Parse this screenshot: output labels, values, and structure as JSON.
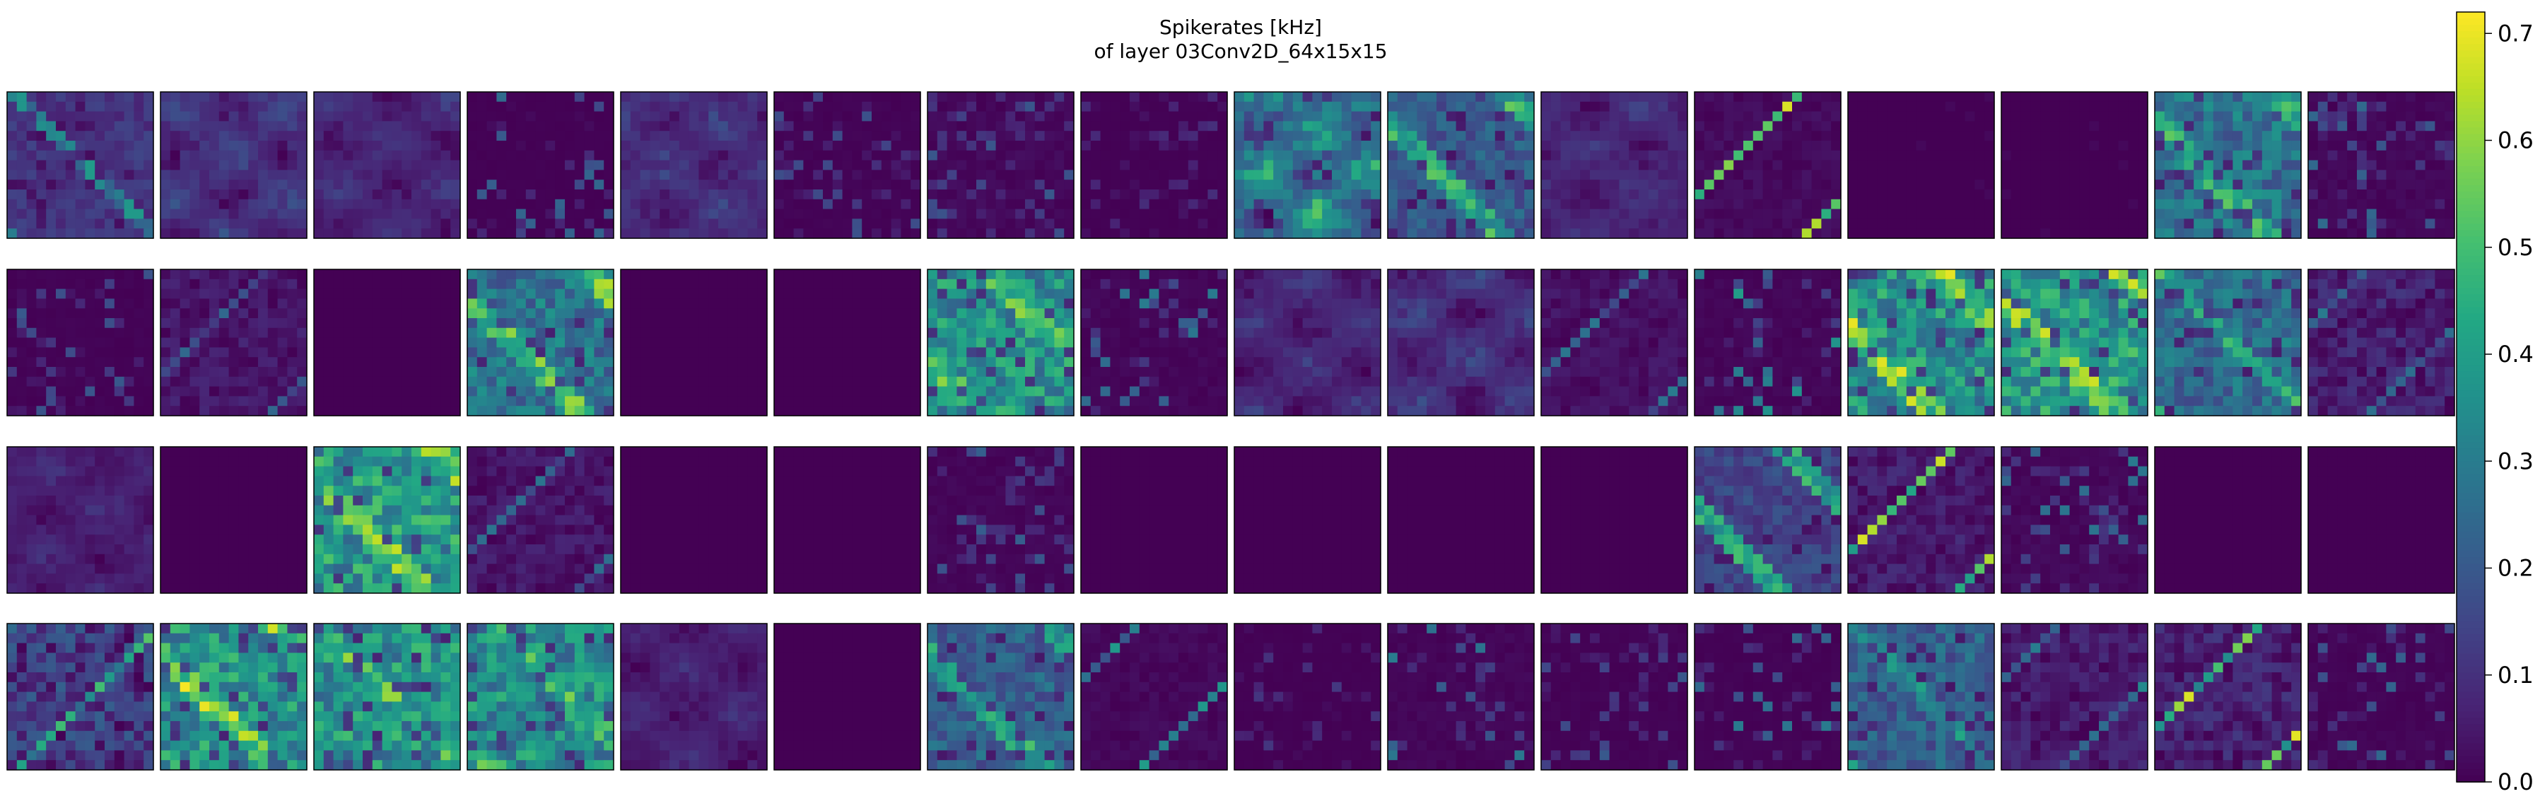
{
  "figure": {
    "title_line1": "Spikerates [kHz]",
    "title_line2": "of layer 03Conv2D_64x15x15"
  },
  "chart_data": {
    "type": "heatmap",
    "title": "Spikerates [kHz]",
    "subtitle": "of layer 03Conv2D_64x15x15",
    "layer": "03Conv2D_64x15x15",
    "grid": false,
    "colormap": "viridis",
    "colorbar": {
      "label": "",
      "placement": "right",
      "vmin": 0.0,
      "vmax": 0.72,
      "ticks": [
        0.0,
        0.1,
        0.2,
        0.3,
        0.4,
        0.5,
        0.6,
        0.7
      ],
      "tick_labels": [
        "0.0",
        "0.1",
        "0.2",
        "0.3",
        "0.4",
        "0.5",
        "0.6",
        "0.7"
      ]
    },
    "panel_rows": 4,
    "panel_cols": 16,
    "map_size": [
      15,
      15
    ],
    "panels": [
      {
        "mean": 0.12,
        "peak": 0.4,
        "pattern": "diag"
      },
      {
        "mean": 0.13,
        "peak": 0.28,
        "pattern": "patchy"
      },
      {
        "mean": 0.1,
        "peak": 0.2,
        "pattern": "patchy"
      },
      {
        "mean": 0.01,
        "peak": 0.25,
        "pattern": "sparse"
      },
      {
        "mean": 0.12,
        "peak": 0.28,
        "pattern": "patchy"
      },
      {
        "mean": 0.02,
        "peak": 0.18,
        "pattern": "sparse"
      },
      {
        "mean": 0.06,
        "peak": 0.2,
        "pattern": "sparse"
      },
      {
        "mean": 0.01,
        "peak": 0.1,
        "pattern": "sparse"
      },
      {
        "mean": 0.36,
        "peak": 0.52,
        "pattern": "patchy"
      },
      {
        "mean": 0.22,
        "peak": 0.55,
        "pattern": "diag"
      },
      {
        "mean": 0.1,
        "peak": 0.25,
        "pattern": "patchy"
      },
      {
        "mean": 0.04,
        "peak": 0.7,
        "pattern": "streak"
      },
      {
        "mean": 0.0,
        "peak": 0.05,
        "pattern": "zero"
      },
      {
        "mean": 0.0,
        "peak": 0.05,
        "pattern": "zero"
      },
      {
        "mean": 0.3,
        "peak": 0.55,
        "pattern": "diag"
      },
      {
        "mean": 0.05,
        "peak": 0.25,
        "pattern": "sparse"
      },
      {
        "mean": 0.02,
        "peak": 0.2,
        "pattern": "sparse"
      },
      {
        "mean": 0.08,
        "peak": 0.25,
        "pattern": "streak"
      },
      {
        "mean": 0.0,
        "peak": 0.0,
        "pattern": "zero"
      },
      {
        "mean": 0.3,
        "peak": 0.65,
        "pattern": "diag"
      },
      {
        "mean": 0.0,
        "peak": 0.0,
        "pattern": "zero"
      },
      {
        "mean": 0.0,
        "peak": 0.0,
        "pattern": "zero"
      },
      {
        "mean": 0.4,
        "peak": 0.62,
        "pattern": "diag"
      },
      {
        "mean": 0.04,
        "peak": 0.3,
        "pattern": "sparse"
      },
      {
        "mean": 0.1,
        "peak": 0.22,
        "pattern": "patchy"
      },
      {
        "mean": 0.12,
        "peak": 0.25,
        "pattern": "patchy"
      },
      {
        "mean": 0.06,
        "peak": 0.3,
        "pattern": "streak"
      },
      {
        "mean": 0.04,
        "peak": 0.4,
        "pattern": "sparse"
      },
      {
        "mean": 0.4,
        "peak": 0.7,
        "pattern": "diag"
      },
      {
        "mean": 0.42,
        "peak": 0.68,
        "pattern": "diag"
      },
      {
        "mean": 0.28,
        "peak": 0.55,
        "pattern": "diag"
      },
      {
        "mean": 0.12,
        "peak": 0.3,
        "pattern": "streak"
      },
      {
        "mean": 0.08,
        "peak": 0.2,
        "pattern": "patchy"
      },
      {
        "mean": 0.0,
        "peak": 0.0,
        "pattern": "zero"
      },
      {
        "mean": 0.42,
        "peak": 0.66,
        "pattern": "diag"
      },
      {
        "mean": 0.08,
        "peak": 0.3,
        "pattern": "streak"
      },
      {
        "mean": 0.0,
        "peak": 0.0,
        "pattern": "zero"
      },
      {
        "mean": 0.0,
        "peak": 0.0,
        "pattern": "zero"
      },
      {
        "mean": 0.04,
        "peak": 0.22,
        "pattern": "sparse"
      },
      {
        "mean": 0.0,
        "peak": 0.0,
        "pattern": "zero"
      },
      {
        "mean": 0.0,
        "peak": 0.0,
        "pattern": "zero"
      },
      {
        "mean": 0.0,
        "peak": 0.0,
        "pattern": "zero"
      },
      {
        "mean": 0.0,
        "peak": 0.0,
        "pattern": "zero"
      },
      {
        "mean": 0.16,
        "peak": 0.52,
        "pattern": "diag"
      },
      {
        "mean": 0.1,
        "peak": 0.7,
        "pattern": "streak"
      },
      {
        "mean": 0.06,
        "peak": 0.3,
        "pattern": "sparse"
      },
      {
        "mean": 0.0,
        "peak": 0.0,
        "pattern": "zero"
      },
      {
        "mean": 0.0,
        "peak": 0.0,
        "pattern": "zero"
      },
      {
        "mean": 0.22,
        "peak": 0.55,
        "pattern": "streak"
      },
      {
        "mean": 0.4,
        "peak": 0.72,
        "pattern": "diag"
      },
      {
        "mean": 0.4,
        "peak": 0.62,
        "pattern": "diag"
      },
      {
        "mean": 0.38,
        "peak": 0.58,
        "pattern": "diag"
      },
      {
        "mean": 0.08,
        "peak": 0.25,
        "pattern": "patchy"
      },
      {
        "mean": 0.0,
        "peak": 0.0,
        "pattern": "zero"
      },
      {
        "mean": 0.24,
        "peak": 0.52,
        "pattern": "diag"
      },
      {
        "mean": 0.03,
        "peak": 0.4,
        "pattern": "streak"
      },
      {
        "mean": 0.01,
        "peak": 0.12,
        "pattern": "sparse"
      },
      {
        "mean": 0.04,
        "peak": 0.3,
        "pattern": "sparse"
      },
      {
        "mean": 0.02,
        "peak": 0.2,
        "pattern": "sparse"
      },
      {
        "mean": 0.02,
        "peak": 0.3,
        "pattern": "sparse"
      },
      {
        "mean": 0.24,
        "peak": 0.45,
        "pattern": "diag"
      },
      {
        "mean": 0.1,
        "peak": 0.35,
        "pattern": "streak"
      },
      {
        "mean": 0.12,
        "peak": 0.7,
        "pattern": "streak"
      },
      {
        "mean": 0.03,
        "peak": 0.25,
        "pattern": "sparse"
      }
    ]
  }
}
